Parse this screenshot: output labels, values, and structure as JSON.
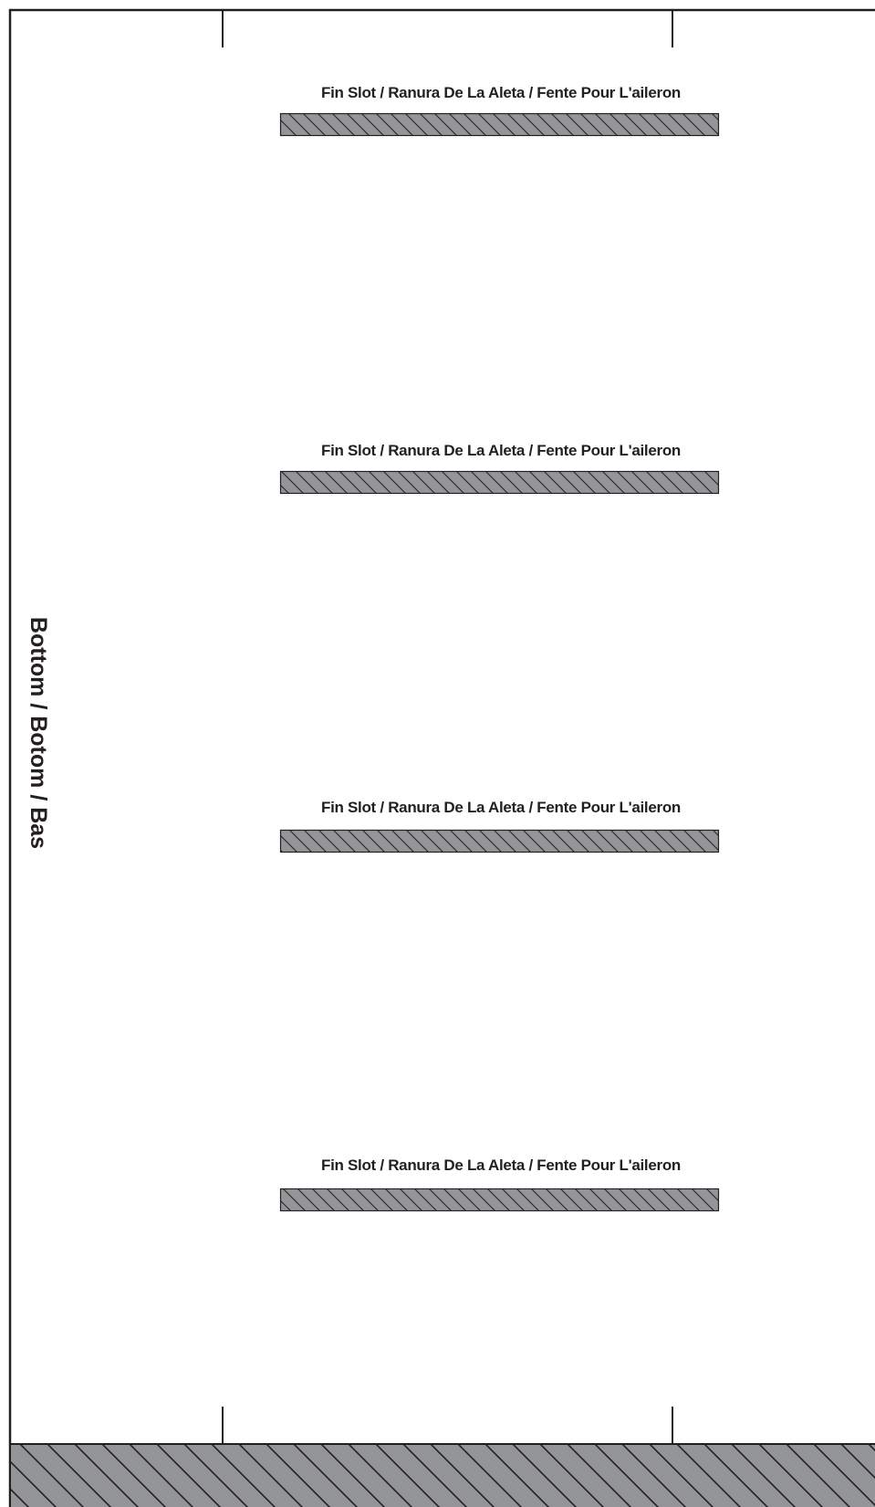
{
  "side_label": "Bottom / Botom / Bas",
  "fin_slots": [
    {
      "label": "Fin Slot / Ranura De La Aleta / Fente Pour L'aileron"
    },
    {
      "label": "Fin Slot / Ranura De La Aleta / Fente Pour L'aileron"
    },
    {
      "label": "Fin Slot / Ranura De La Aleta / Fente Pour L'aileron"
    },
    {
      "label": "Fin Slot / Ranura De La Aleta / Fente Pour L'aileron"
    }
  ],
  "colors": {
    "line": "#231f20",
    "hatch_fill": "#939598",
    "background": "#ffffff"
  }
}
